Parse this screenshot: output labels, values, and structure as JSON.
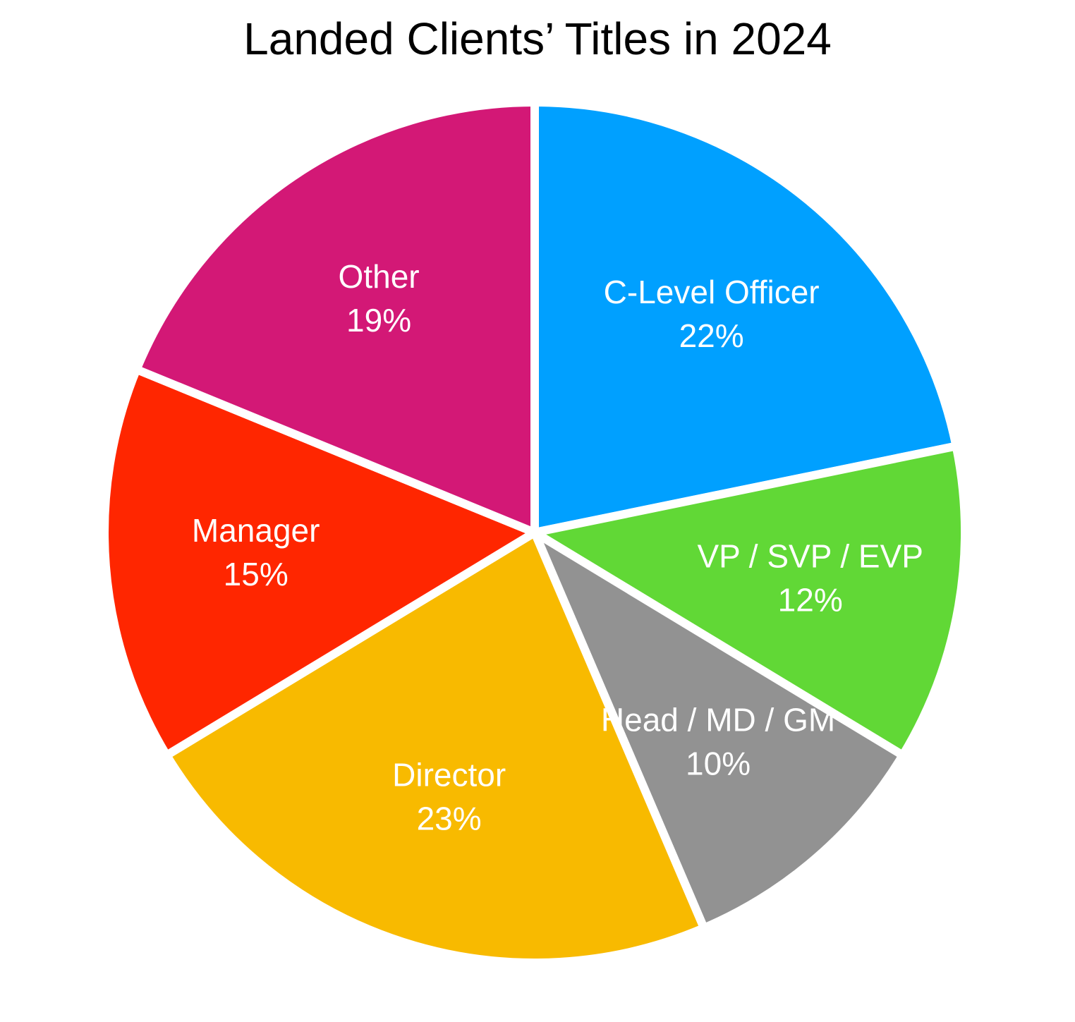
{
  "chart_data": {
    "type": "pie",
    "title": "Landed Clients’ Titles in 2024",
    "categories": [
      "C-Level Officer",
      "VP / SVP / EVP",
      "Head / MD / GM",
      "Director",
      "Manager",
      "Other"
    ],
    "values": [
      22,
      12,
      10,
      23,
      15,
      19
    ],
    "value_labels": [
      "22%",
      "12%",
      "10%",
      "23%",
      "15%",
      "19%"
    ],
    "colors": [
      "#00a0ff",
      "#61d836",
      "#929292",
      "#f8ba00",
      "#ff2600",
      "#d31876"
    ]
  }
}
